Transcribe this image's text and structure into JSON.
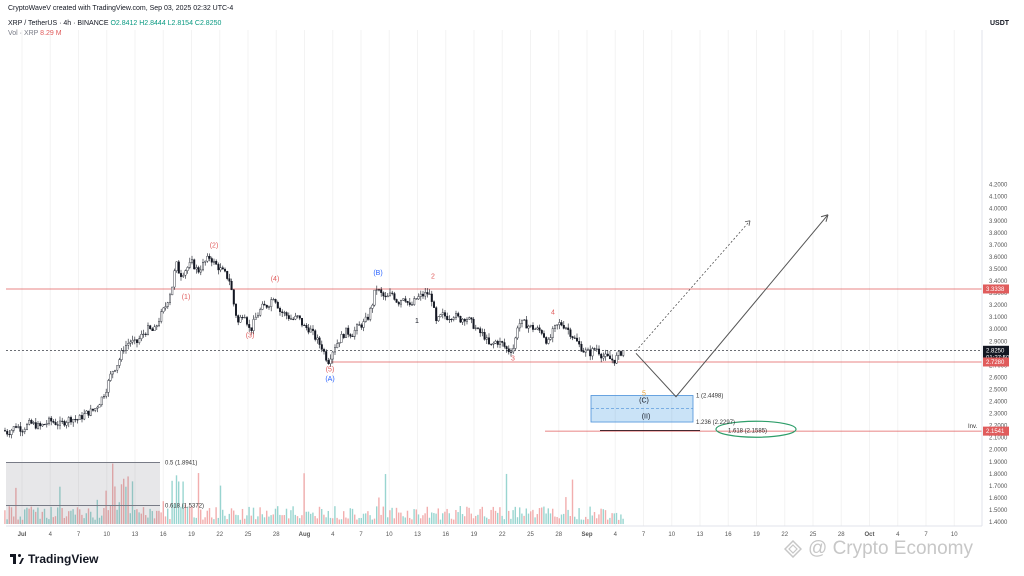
{
  "header": {
    "author_line": "CryptoWaveV created with TradingView.com, Sep 03, 2025 02:32 UTC-4",
    "symbol_line": "XRP / TetherUS · 4h · BINANCE",
    "ohlc": "O2.8412  H2.8444  L2.8154  C2.8250",
    "vol_label": "Vol · XRP",
    "vol_value": "8.29 M"
  },
  "price_axis_unit": "USDT",
  "chart_data": {
    "type": "candlestick",
    "series": [
      {
        "name": "XRP / TetherUS",
        "interval": "4h",
        "exchange": "BINANCE"
      }
    ],
    "ylim": [
      1.4,
      4.3
    ],
    "y_ticks": [
      "1.4000",
      "1.5000",
      "1.6000",
      "1.7000",
      "1.8000",
      "1.9000",
      "2.0000",
      "2.1000",
      "2.2000",
      "2.3000",
      "2.4000",
      "2.5000",
      "2.6000",
      "2.7000",
      "2.8000",
      "2.9000",
      "3.0000",
      "3.1000",
      "3.2000",
      "3.3000",
      "3.4000",
      "3.5000",
      "3.6000",
      "3.7000",
      "3.8000",
      "3.9000",
      "4.0000",
      "4.1000",
      "4.2000"
    ],
    "x_ticks": [
      "Jul",
      "4",
      "7",
      "10",
      "13",
      "16",
      "19",
      "22",
      "25",
      "28",
      "Aug",
      "4",
      "7",
      "10",
      "13",
      "16",
      "19",
      "22",
      "25",
      "28",
      "Sep",
      "4",
      "7",
      "10",
      "13",
      "16",
      "19",
      "22",
      "25",
      "28",
      "Oct",
      "4",
      "7",
      "10"
    ],
    "price_path": [
      [
        0,
        2.18
      ],
      [
        8,
        2.14
      ],
      [
        16,
        2.2
      ],
      [
        22,
        2.17
      ],
      [
        30,
        2.22
      ],
      [
        40,
        2.19
      ],
      [
        50,
        2.24
      ],
      [
        60,
        2.21
      ],
      [
        70,
        2.26
      ],
      [
        78,
        2.25
      ],
      [
        86,
        2.3
      ],
      [
        94,
        2.33
      ],
      [
        100,
        2.4
      ],
      [
        106,
        2.5
      ],
      [
        112,
        2.65
      ],
      [
        118,
        2.72
      ],
      [
        124,
        2.85
      ],
      [
        130,
        2.9
      ],
      [
        136,
        2.88
      ],
      [
        142,
        2.95
      ],
      [
        148,
        3.0
      ],
      [
        154,
        2.98
      ],
      [
        160,
        3.1
      ],
      [
        166,
        3.2
      ],
      [
        172,
        3.35
      ],
      [
        176,
        3.55
      ],
      [
        180,
        3.45
      ],
      [
        186,
        3.5
      ],
      [
        192,
        3.55
      ],
      [
        198,
        3.48
      ],
      [
        204,
        3.55
      ],
      [
        210,
        3.6
      ],
      [
        214,
        3.55
      ],
      [
        220,
        3.5
      ],
      [
        226,
        3.45
      ],
      [
        230,
        3.4
      ],
      [
        234,
        3.2
      ],
      [
        238,
        3.05
      ],
      [
        244,
        3.15
      ],
      [
        250,
        2.98
      ],
      [
        256,
        3.1
      ],
      [
        262,
        3.18
      ],
      [
        268,
        3.2
      ],
      [
        274,
        3.28
      ],
      [
        280,
        3.15
      ],
      [
        286,
        3.12
      ],
      [
        292,
        3.08
      ],
      [
        298,
        3.1
      ],
      [
        304,
        3.02
      ],
      [
        310,
        3.0
      ],
      [
        316,
        2.92
      ],
      [
        322,
        2.85
      ],
      [
        328,
        2.73
      ],
      [
        334,
        2.85
      ],
      [
        340,
        2.92
      ],
      [
        346,
        2.98
      ],
      [
        352,
        2.96
      ],
      [
        358,
        3.02
      ],
      [
        364,
        3.05
      ],
      [
        368,
        3.1
      ],
      [
        372,
        3.2
      ],
      [
        376,
        3.35
      ],
      [
        380,
        3.3
      ],
      [
        386,
        3.25
      ],
      [
        392,
        3.3
      ],
      [
        398,
        3.22
      ],
      [
        404,
        3.28
      ],
      [
        410,
        3.18
      ],
      [
        416,
        3.25
      ],
      [
        422,
        3.28
      ],
      [
        428,
        3.3
      ],
      [
        432,
        3.25
      ],
      [
        436,
        3.05
      ],
      [
        442,
        3.12
      ],
      [
        448,
        3.1
      ],
      [
        454,
        3.12
      ],
      [
        460,
        3.08
      ],
      [
        466,
        3.1
      ],
      [
        472,
        3.05
      ],
      [
        478,
        2.98
      ],
      [
        484,
        2.95
      ],
      [
        490,
        2.85
      ],
      [
        496,
        2.9
      ],
      [
        502,
        2.88
      ],
      [
        508,
        2.82
      ],
      [
        514,
        2.85
      ],
      [
        518,
        3.05
      ],
      [
        524,
        3.05
      ],
      [
        530,
        3.02
      ],
      [
        536,
        3.0
      ],
      [
        542,
        2.98
      ],
      [
        548,
        2.88
      ],
      [
        554,
        3.0
      ],
      [
        560,
        3.05
      ],
      [
        566,
        3.02
      ],
      [
        572,
        2.95
      ],
      [
        578,
        2.88
      ],
      [
        584,
        2.82
      ],
      [
        590,
        2.8
      ],
      [
        596,
        2.85
      ],
      [
        602,
        2.78
      ],
      [
        608,
        2.76
      ],
      [
        614,
        2.74
      ],
      [
        620,
        2.8
      ],
      [
        624,
        2.83
      ]
    ],
    "horizontal_levels": [
      {
        "price": 3.3338,
        "label": "3.3338",
        "color": "#e05c5c"
      },
      {
        "price": 2.825,
        "label": "2.8250",
        "color": "#131722"
      },
      {
        "price": 2.728,
        "label": "2.7280",
        "color": "#e05c5c"
      },
      {
        "price": 2.1541,
        "label": "2.1541",
        "color": "#e05c5c"
      }
    ],
    "price_countdown": "01:27:50",
    "fib_labels": [
      {
        "text": "1 (2.4498)",
        "price": 2.4498
      },
      {
        "text": "1.236 (2.2297)",
        "price": 2.2297
      },
      {
        "text": "1.618 (2.1585)",
        "price": 2.1585
      },
      {
        "text": "0.5 (1.8941)",
        "price": 1.8941
      },
      {
        "text": "0.618 (1.5372)",
        "price": 1.5372
      }
    ],
    "level_tag": "Inv.",
    "wave_labels": [
      {
        "text": "(1)",
        "x": 186,
        "y": 3.25,
        "color": "#e05c5c"
      },
      {
        "text": "(2)",
        "x": 214,
        "y": 3.68,
        "color": "#e05c5c"
      },
      {
        "text": "(3)",
        "x": 250,
        "y": 2.93,
        "color": "#e05c5c"
      },
      {
        "text": "(4)",
        "x": 275,
        "y": 3.4,
        "color": "#e05c5c"
      },
      {
        "text": "(5)",
        "x": 330,
        "y": 2.65,
        "color": "#e05c5c"
      },
      {
        "text": "(A)",
        "x": 330,
        "y": 2.57,
        "color": "#2962ff"
      },
      {
        "text": "(B)",
        "x": 378,
        "y": 3.45,
        "color": "#2962ff"
      },
      {
        "text": "2",
        "x": 433,
        "y": 3.42,
        "color": "#e05c5c"
      },
      {
        "text": "1",
        "x": 417,
        "y": 3.05,
        "color": "#131722"
      },
      {
        "text": "4",
        "x": 553,
        "y": 3.12,
        "color": "#e05c5c"
      },
      {
        "text": "3",
        "x": 513,
        "y": 2.74,
        "color": "#e05c5c"
      },
      {
        "text": "5",
        "x": 644,
        "y": 2.45,
        "color": "#e8a33c"
      },
      {
        "text": "(C)",
        "x": 644,
        "y": 2.39,
        "color": "#131722"
      },
      {
        "text": "(II)",
        "x": 646,
        "y": 2.26,
        "color": "#131722"
      }
    ]
  },
  "branding": {
    "tv_logo_text": "TradingView",
    "watermark_text": "@ Crypto Economy"
  }
}
